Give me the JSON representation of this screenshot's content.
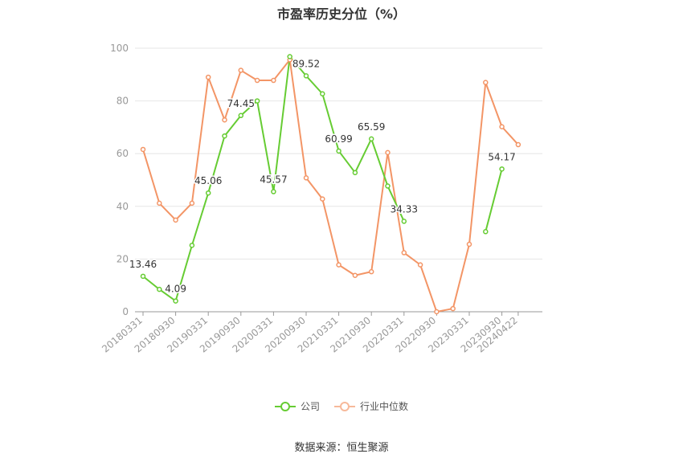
{
  "chart_data": {
    "type": "line",
    "title": "市盈率历史分位（%）",
    "source": "数据来源：恒生聚源",
    "xlabel": "",
    "ylabel": "",
    "ylim": [
      0,
      100
    ],
    "yticks": [
      "0",
      "20",
      "40",
      "60",
      "80",
      "100"
    ],
    "grid": true,
    "legend_position": "bottom",
    "x": [
      "20180331",
      "20180630",
      "20180930",
      "20181231",
      "20190331",
      "20190630",
      "20190930",
      "20191231",
      "20200331",
      "20200630",
      "20200930",
      "20201231",
      "20210331",
      "20210630",
      "20210930",
      "20211231",
      "20220331",
      "20220630",
      "20220930",
      "20221231",
      "20230331",
      "20230630",
      "20230930",
      "20240422"
    ],
    "xtick_labels": [
      "20180331",
      "20180930",
      "20190331",
      "20190930",
      "20200331",
      "20200930",
      "20210331",
      "20210930",
      "20220331",
      "20220930",
      "20230331",
      "20230930",
      "20240422"
    ],
    "series": [
      {
        "name": "公司",
        "color": "#66cc33",
        "values": [
          13.46,
          8.5,
          4.09,
          25.2,
          45.06,
          66.7,
          74.45,
          80.0,
          45.57,
          96.8,
          89.52,
          82.7,
          60.99,
          52.8,
          65.59,
          47.7,
          34.33,
          null,
          null,
          null,
          null,
          30.4,
          54.17,
          null
        ],
        "labels": [
          "13.46",
          null,
          "4.09",
          null,
          "45.06",
          null,
          "74.45",
          null,
          "45.57",
          null,
          "89.52",
          null,
          "60.99",
          null,
          "65.59",
          null,
          "34.33",
          null,
          null,
          null,
          null,
          null,
          "54.17",
          null
        ]
      },
      {
        "name": "行业中位数",
        "color": "#f39566",
        "values": [
          61.6,
          41.2,
          34.8,
          41.2,
          89.0,
          72.8,
          91.6,
          87.8,
          87.8,
          95.6,
          50.8,
          42.8,
          17.8,
          13.8,
          15.2,
          60.4,
          22.4,
          17.8,
          0.0,
          1.2,
          25.6,
          87.0,
          70.2,
          63.4
        ]
      }
    ]
  }
}
